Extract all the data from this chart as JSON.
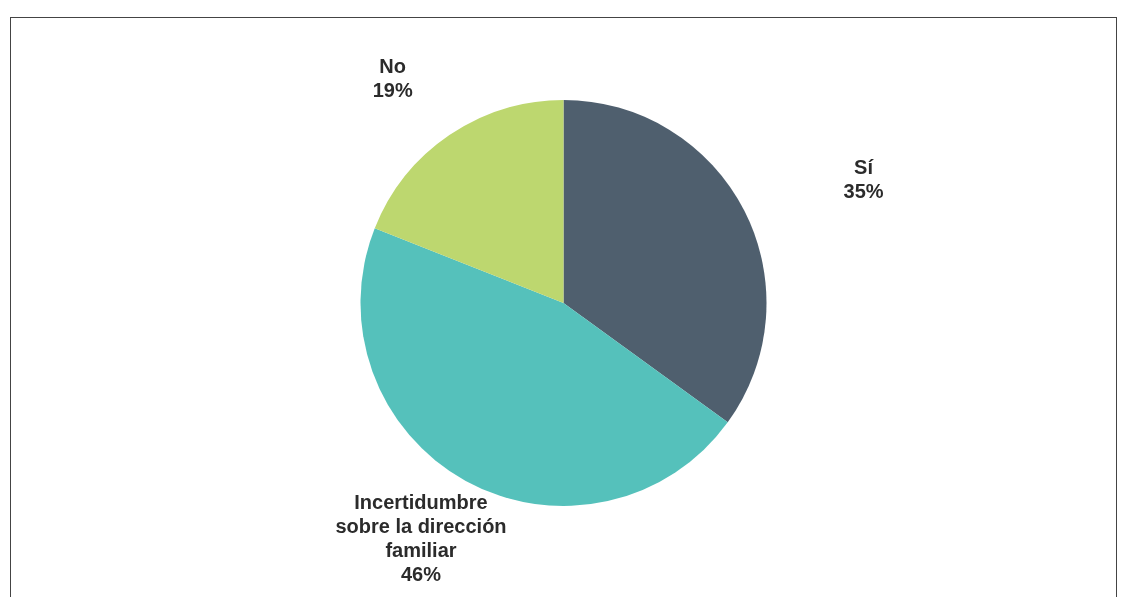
{
  "chart_data": {
    "type": "pie",
    "categories": [
      "Sí",
      "Incertidumbre sobre la dirección familiar",
      "No"
    ],
    "values": [
      35,
      46,
      19
    ],
    "colors": [
      "#4f5f6e",
      "#55c1bb",
      "#bdd76f"
    ],
    "value_labels": [
      "35%",
      "46%",
      "19%"
    ],
    "legend": false
  }
}
